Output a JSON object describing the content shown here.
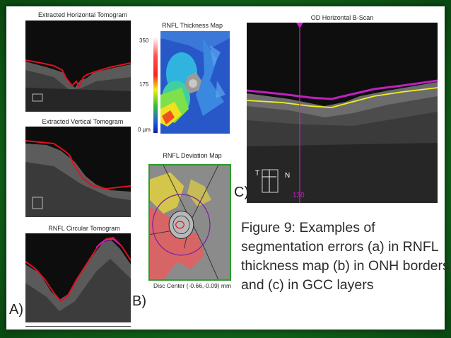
{
  "panels": {
    "horizontal_tomogram": {
      "title": "Extracted Horizontal Tomogram"
    },
    "vertical_tomogram": {
      "title": "Extracted Vertical Tomogram"
    },
    "circular_tomogram": {
      "title": "RNFL Circular Tomogram"
    },
    "thickness_map": {
      "title": "RNFL Thickness Map",
      "scale_top": "350",
      "scale_mid": "175",
      "scale_bottom": "0 µm"
    },
    "deviation_map": {
      "title": "RNFL Deviation Map",
      "footer": "Disc Center  (-0.66,-0.09) mm"
    },
    "bscan": {
      "title": "OD Horizontal B-Scan",
      "orient_t": "T",
      "orient_n": "N",
      "position_label": "130"
    }
  },
  "part_labels": {
    "a": "A)",
    "b": "B)",
    "c": "C)"
  },
  "figure_caption": [
    "Figure 9: Examples of",
    "segmentation errors (a) in RNFL",
    "thickness map (b) in ONH borders",
    "and (c) in GCC layers"
  ],
  "colors": {
    "frame_green": "#136a1c",
    "segmentation_red": "#e01020",
    "gcc_magenta": "#c020c0",
    "gcc_yellow": "#f0f020"
  }
}
